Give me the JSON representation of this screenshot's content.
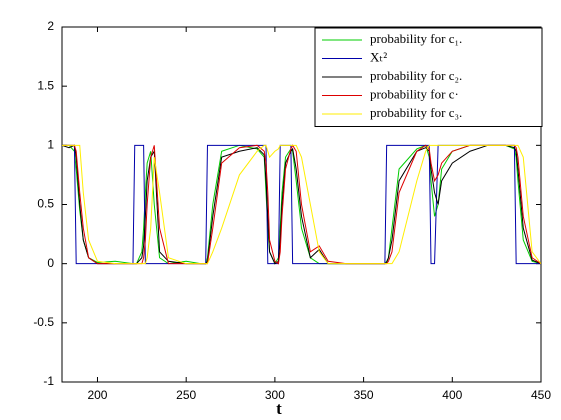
{
  "chart_data": {
    "type": "line",
    "xlabel": "t",
    "x": [
      180,
      184,
      187,
      188,
      190,
      192,
      195,
      200,
      210,
      220,
      221,
      222,
      225,
      226,
      227,
      228,
      230,
      232,
      235,
      240,
      250,
      258,
      260,
      261,
      262,
      265,
      270,
      280,
      290,
      294,
      295,
      296,
      297,
      300,
      302,
      303,
      304,
      306,
      309,
      310,
      312,
      315,
      320,
      325,
      330,
      340,
      350,
      360,
      362,
      363,
      364,
      366,
      370,
      380,
      385,
      387,
      388,
      390,
      392,
      394,
      400,
      410,
      420,
      430,
      435,
      436,
      437,
      440,
      445,
      450
    ],
    "series": [
      {
        "name": "probability for c₁.",
        "color": "#00cc00",
        "values": [
          1,
          1,
          0.95,
          0.8,
          0.45,
          0.2,
          0.05,
          0.01,
          0.02,
          0,
          0,
          0,
          0.1,
          0.3,
          0.6,
          0.85,
          0.95,
          0.5,
          0.05,
          0,
          0.02,
          0,
          0,
          0,
          0.05,
          0.5,
          0.95,
          1,
          0.97,
          0.9,
          0.6,
          0.3,
          0.1,
          0,
          0.05,
          0.3,
          0.6,
          0.9,
          0.97,
          0.95,
          0.7,
          0.3,
          0.05,
          0,
          0,
          0,
          0,
          0,
          0,
          0.02,
          0.05,
          0.3,
          0.8,
          0.97,
          1,
          0.9,
          0.7,
          0.4,
          0.5,
          0.8,
          0.95,
          1,
          1,
          1,
          0.97,
          0.9,
          0.7,
          0.2,
          0.02,
          0
        ]
      },
      {
        "name": "Xₜ²",
        "color": "#0000aa",
        "values": [
          1,
          1,
          1,
          0,
          0,
          0,
          0,
          0,
          0,
          0,
          1,
          1,
          1,
          1,
          0,
          0,
          0,
          0,
          0,
          0,
          0,
          0,
          0,
          0,
          1,
          1,
          1,
          1,
          1,
          1,
          1,
          0,
          0,
          0,
          0,
          1,
          1,
          1,
          1,
          0,
          0,
          0,
          0,
          0,
          0,
          0,
          0,
          0,
          0,
          1,
          1,
          1,
          1,
          1,
          1,
          1,
          0,
          0,
          1,
          1,
          1,
          1,
          1,
          1,
          1,
          0,
          0,
          0,
          0,
          0
        ]
      },
      {
        "name": "probability for c₂.",
        "color": "#000000",
        "values": [
          1,
          0.98,
          1,
          0.9,
          0.5,
          0.2,
          0.05,
          0,
          0,
          0,
          0,
          0,
          0.05,
          0.15,
          0.4,
          0.7,
          0.9,
          0.95,
          0.1,
          0.02,
          0,
          0,
          0,
          0,
          0.02,
          0.4,
          0.9,
          0.95,
          0.98,
          0.92,
          0.7,
          0.4,
          0.1,
          0,
          0.02,
          0.2,
          0.5,
          0.85,
          0.95,
          0.97,
          0.8,
          0.4,
          0.05,
          0.12,
          0,
          0,
          0,
          0,
          0,
          0.01,
          0.05,
          0.2,
          0.7,
          0.95,
          0.98,
          0.95,
          0.8,
          0.6,
          0.5,
          0.7,
          0.85,
          0.95,
          1,
          1,
          0.98,
          0.95,
          0.8,
          0.3,
          0.03,
          0
        ]
      },
      {
        "name": "probability for c·",
        "color": "#dd0000",
        "values": [
          1,
          1,
          1,
          0.95,
          0.6,
          0.3,
          0.05,
          0,
          0,
          0,
          0,
          0,
          0,
          0.05,
          0.2,
          0.5,
          0.9,
          1,
          0.3,
          0,
          0,
          0,
          0,
          0,
          0,
          0.3,
          0.85,
          0.98,
          1,
          0.95,
          0.85,
          0.6,
          0.2,
          0.02,
          0,
          0.1,
          0.4,
          0.8,
          0.97,
          1,
          0.95,
          0.5,
          0.1,
          0.15,
          0.02,
          0,
          0,
          0,
          0,
          0,
          0.02,
          0.1,
          0.6,
          0.95,
          1,
          0.97,
          0.85,
          0.7,
          0.75,
          0.85,
          0.95,
          1,
          1,
          1,
          1,
          0.98,
          0.9,
          0.4,
          0.05,
          0
        ]
      },
      {
        "name": "probability for c₃.",
        "color": "#ffee00",
        "values": [
          1,
          1,
          1,
          1,
          1,
          0.6,
          0.2,
          0.02,
          0,
          0,
          0,
          0,
          0,
          0,
          0,
          0.05,
          0.3,
          0.9,
          0.6,
          0.05,
          0,
          0,
          0,
          0,
          0,
          0.1,
          0.3,
          0.75,
          0.95,
          1,
          1,
          0.95,
          0.9,
          0.95,
          0.97,
          1,
          1,
          1,
          1,
          1,
          1,
          0.9,
          0.5,
          0.1,
          0,
          0,
          0,
          0,
          0,
          0,
          0,
          0,
          0.1,
          0.7,
          0.95,
          1,
          1,
          1,
          1,
          1,
          1,
          1,
          1,
          1,
          1,
          1,
          1,
          0.9,
          0.1,
          0
        ]
      }
    ],
    "xlim": [
      180,
      450
    ],
    "xticks": [
      200,
      250,
      300,
      350,
      400,
      450
    ],
    "ylim": [
      -1,
      2
    ],
    "yticks": [
      -1,
      -0.5,
      0,
      0.5,
      1,
      1.5,
      2
    ],
    "legend": "upper right"
  }
}
